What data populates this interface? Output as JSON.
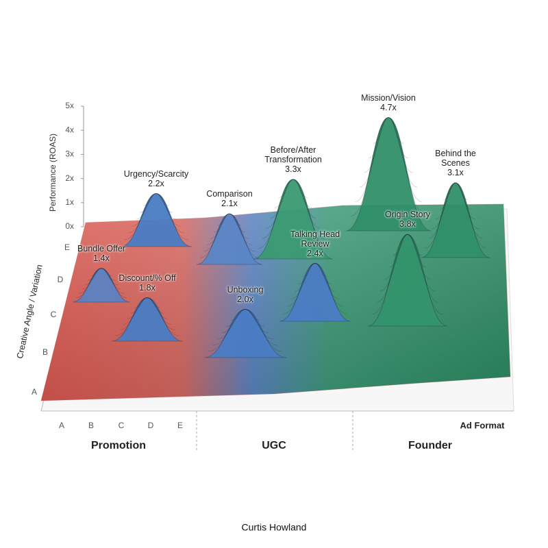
{
  "chart_data": {
    "type": "surface",
    "z_label": "Performance (ROAS)",
    "depth_label": "Creative Angle / Variation",
    "x_label": "Ad Format",
    "footer": "Curtis Howland",
    "zlim": [
      0,
      5
    ],
    "zticks": [
      {
        "value": 0,
        "label": "0x"
      },
      {
        "value": 1,
        "label": "1x"
      },
      {
        "value": 2,
        "label": "2x"
      },
      {
        "value": 3,
        "label": "3x"
      },
      {
        "value": 4,
        "label": "4x"
      },
      {
        "value": 5,
        "label": "5x"
      }
    ],
    "depth_categories": [
      "A",
      "B",
      "C",
      "D",
      "E"
    ],
    "x_categories": [
      "A",
      "B",
      "C",
      "D",
      "E"
    ],
    "groups": [
      "Promotion",
      "UGC",
      "Founder"
    ],
    "peaks": [
      {
        "name": "Urgency/Scarcity",
        "value": 2.2,
        "value_label": "2.2x",
        "color": "#4a7cc4"
      },
      {
        "name": "Bundle Offer",
        "value": 1.4,
        "value_label": "1.4x",
        "color": "#5c82c0"
      },
      {
        "name": "Discount/% Off",
        "value": 1.8,
        "value_label": "1.8x",
        "color": "#4a7cc4"
      },
      {
        "name": "Comparison",
        "value": 2.1,
        "value_label": "2.1x",
        "color": "#5a86c6"
      },
      {
        "name": "Before/After Transformation",
        "value": 3.3,
        "value_label": "3.3x",
        "color": "#3a9a72"
      },
      {
        "name": "Unboxing",
        "value": 2.0,
        "value_label": "2.0x",
        "color": "#4a7cc4"
      },
      {
        "name": "Talking Head Review",
        "value": 2.4,
        "value_label": "2.4x",
        "color": "#4a7cc4"
      },
      {
        "name": "Mission/Vision",
        "value": 4.7,
        "value_label": "4.7x",
        "color": "#2f8f68"
      },
      {
        "name": "Behind the Scenes",
        "value": 3.1,
        "value_label": "3.1x",
        "color": "#2f8f68"
      },
      {
        "name": "Origin Story",
        "value": 3.8,
        "value_label": "3.8x",
        "color": "#33946c"
      }
    ]
  }
}
